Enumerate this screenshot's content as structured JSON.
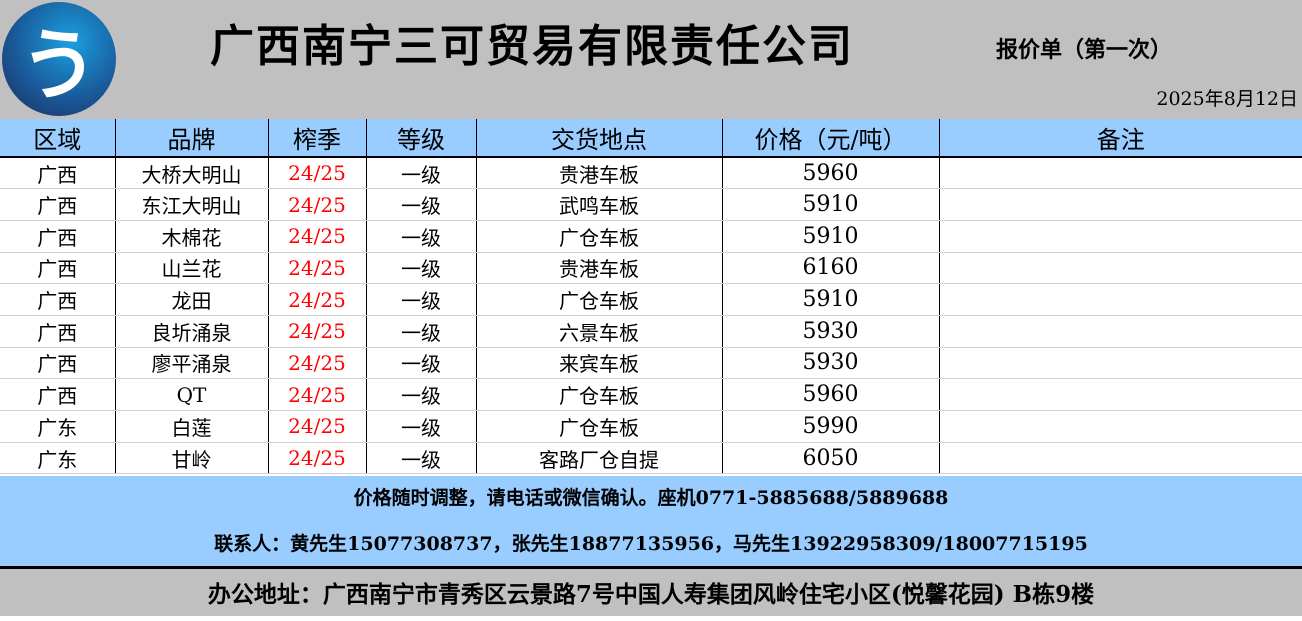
{
  "header": {
    "logo_text": "う",
    "company": "广西南宁三可贸易有限责任公司",
    "subtitle": "报价单（第一次）",
    "date": "2025年8月12日"
  },
  "table": {
    "columns": [
      "区域",
      "品牌",
      "榨季",
      "等级",
      "交货地点",
      "价格（元/吨）",
      "备注"
    ],
    "rows": [
      [
        "广西",
        "大桥大明山",
        "24/25",
        "一级",
        "贵港车板",
        "5960",
        ""
      ],
      [
        "广西",
        "东江大明山",
        "24/25",
        "一级",
        "武鸣车板",
        "5910",
        ""
      ],
      [
        "广西",
        "木棉花",
        "24/25",
        "一级",
        "广仓车板",
        "5910",
        ""
      ],
      [
        "广西",
        "山兰花",
        "24/25",
        "一级",
        "贵港车板",
        "6160",
        ""
      ],
      [
        "广西",
        "龙田",
        "24/25",
        "一级",
        "广仓车板",
        "5910",
        ""
      ],
      [
        "广西",
        "良圻涌泉",
        "24/25",
        "一级",
        "六景车板",
        "5930",
        ""
      ],
      [
        "广西",
        "廖平涌泉",
        "24/25",
        "一级",
        "来宾车板",
        "5930",
        ""
      ],
      [
        "广西",
        "QT",
        "24/25",
        "一级",
        "广仓车板",
        "5960",
        ""
      ],
      [
        "广东",
        "白莲",
        "24/25",
        "一级",
        "广仓车板",
        "5990",
        ""
      ],
      [
        "广东",
        "甘岭",
        "24/25",
        "一级",
        "客路厂仓自提",
        "6050",
        ""
      ]
    ]
  },
  "footer": {
    "notice": "价格随时调整，请电话或微信确认。座机0771-5885688/5889688",
    "contacts": "联系人：黄先生15077308737，张先生18877135956，马先生13922958309/18007715195",
    "address": "办公地址：广西南宁市青秀区云景路7号中国人寿集团风岭住宅小区(悦馨花园) B栋9楼"
  },
  "colors": {
    "header_bg": "#c0c0c0",
    "table_header_bg": "#99ccff",
    "season_text": "#ff0000"
  }
}
